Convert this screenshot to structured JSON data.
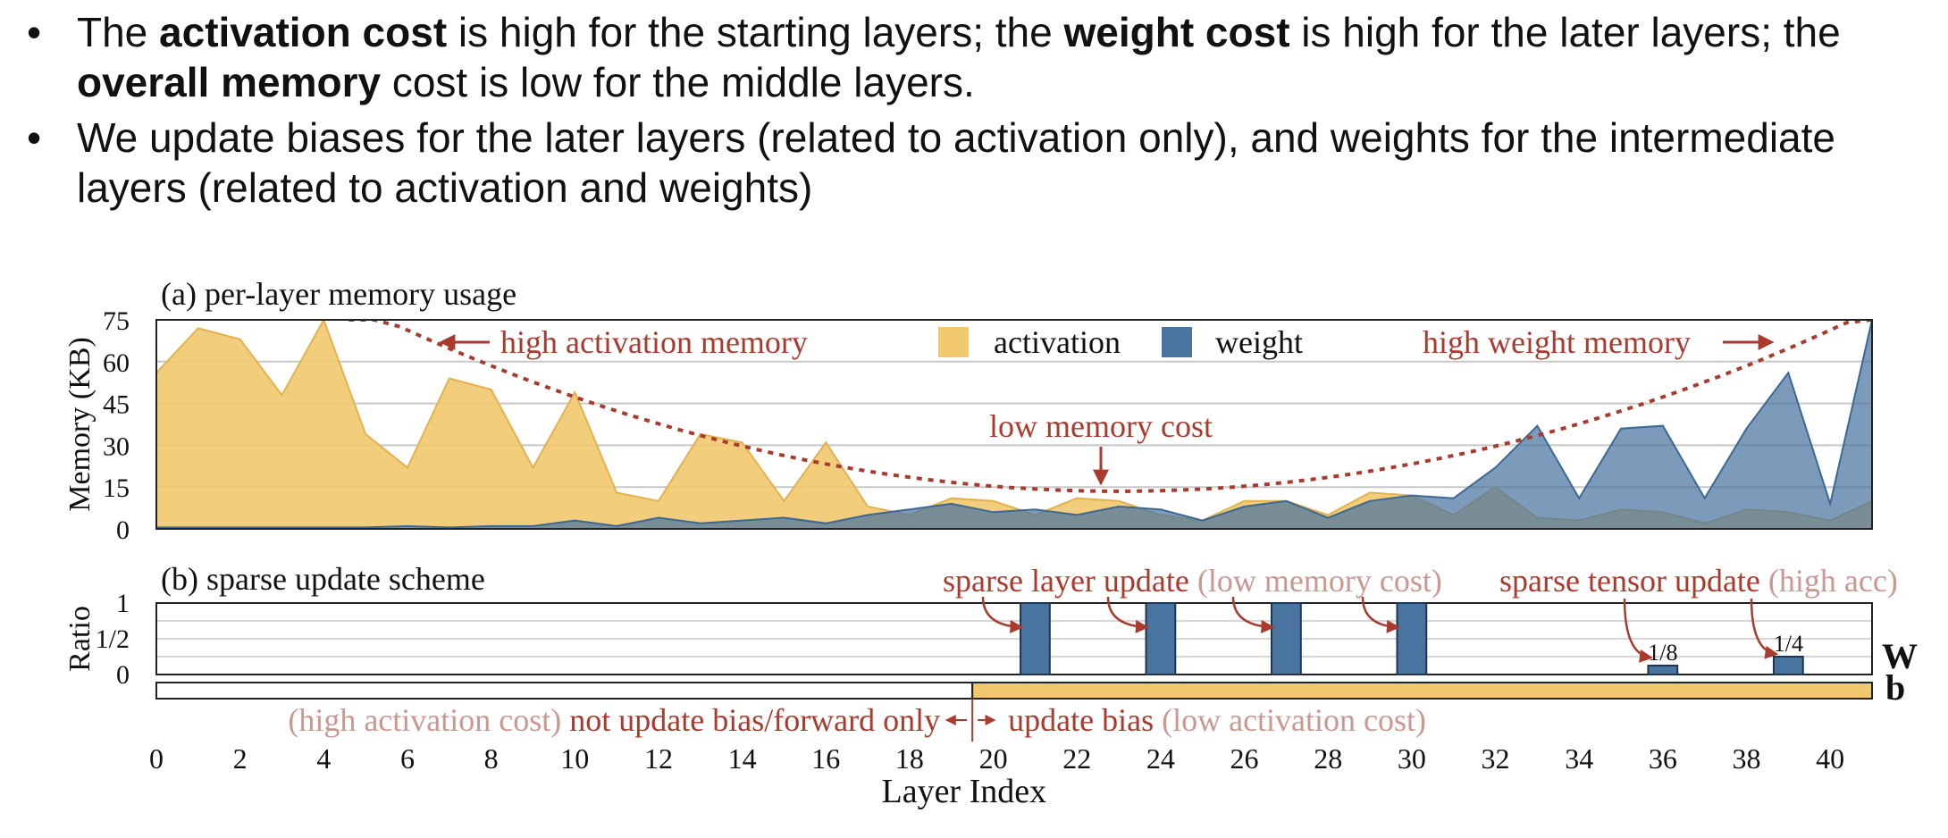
{
  "bullets": [
    {
      "parts": [
        {
          "t": "The ",
          "b": false
        },
        {
          "t": "activation cost",
          "b": true
        },
        {
          "t": " is high for the starting layers; the ",
          "b": false
        },
        {
          "t": "weight cost",
          "b": true
        },
        {
          "t": " is high for the later layers; the ",
          "b": false
        },
        {
          "t": "overall memory",
          "b": true
        },
        {
          "t": " cost is low for the middle layers.",
          "b": false
        }
      ]
    },
    {
      "parts": [
        {
          "t": "We update biases for the later layers (related to activation only), and weights for the intermediate layers (related to activation and weights)",
          "b": false
        }
      ]
    }
  ],
  "colors": {
    "activation": "#f0c86e",
    "activation_edge": "#e3b24f",
    "weight": "#3d6894",
    "weight_fill": "#4a74a0",
    "annotation": "#a83a2e",
    "annotation_light": "#c99890",
    "grid": "#c8c8c8",
    "text": "#111111"
  },
  "chart_data": [
    {
      "type": "area",
      "title": "(a) per-layer memory usage",
      "ylabel": "Memory (KB)",
      "xlabel": "Layer Index",
      "ylim": [
        0,
        75
      ],
      "xlim": [
        0,
        41
      ],
      "yticks": [
        0,
        15,
        30,
        45,
        60,
        75
      ],
      "xticks": [
        0,
        2,
        4,
        6,
        8,
        10,
        12,
        14,
        16,
        18,
        20,
        22,
        24,
        26,
        28,
        30,
        32,
        34,
        36,
        38,
        40
      ],
      "grid": true,
      "x": [
        0,
        1,
        2,
        3,
        4,
        5,
        6,
        7,
        8,
        9,
        10,
        11,
        12,
        13,
        14,
        15,
        16,
        17,
        18,
        19,
        20,
        21,
        22,
        23,
        24,
        25,
        26,
        27,
        28,
        29,
        30,
        31,
        32,
        33,
        34,
        35,
        36,
        37,
        38,
        39,
        40,
        41
      ],
      "series": [
        {
          "name": "activation",
          "values": [
            56,
            72,
            68,
            48,
            78,
            34,
            22,
            54,
            50,
            22,
            49,
            13,
            10,
            34,
            31,
            10,
            31,
            8,
            5,
            11,
            10,
            5,
            11,
            10,
            5,
            3,
            10,
            10,
            5,
            13,
            12,
            5,
            15,
            4,
            3,
            7,
            6,
            2,
            7,
            6,
            3,
            10
          ]
        },
        {
          "name": "weight",
          "values": [
            0.5,
            0.5,
            0.5,
            0.5,
            0.5,
            0.5,
            1,
            0.5,
            1,
            1,
            3,
            1,
            4,
            2,
            3,
            4,
            2,
            5,
            7,
            9,
            6,
            7,
            5,
            8,
            7,
            3,
            8,
            10,
            4,
            10,
            12,
            11,
            22,
            37,
            11,
            36,
            37,
            11,
            36,
            56,
            9,
            78
          ]
        }
      ],
      "legend": {
        "position": "top-center",
        "entries": [
          "activation",
          "weight"
        ]
      },
      "annotations": {
        "high_activation": "high activation memory",
        "high_weight": "high weight memory",
        "low_memory": "low memory cost"
      }
    },
    {
      "type": "bar",
      "title": "(b) sparse update scheme",
      "ylabel": "Ratio",
      "xlim": [
        0,
        41
      ],
      "yticks": [
        "0",
        "1/2",
        "1"
      ],
      "weight_bars": [
        {
          "x": 21,
          "value": 1
        },
        {
          "x": 24,
          "value": 1
        },
        {
          "x": 27,
          "value": 1
        },
        {
          "x": 30,
          "value": 1
        },
        {
          "x": 36,
          "value": 0.125,
          "label": "1/8"
        },
        {
          "x": 39,
          "value": 0.25,
          "label": "1/4"
        }
      ],
      "bias_update_start": 19.5,
      "row_labels": {
        "weight": "W",
        "bias": "b"
      },
      "annotations": {
        "sparse_layer": "sparse layer update",
        "sparse_layer_note": "(low memory cost)",
        "sparse_tensor": "sparse tensor update",
        "sparse_tensor_note": "(high acc)",
        "left_note": "(high activation cost)",
        "left_main": "not update bias/forward only",
        "right_main": "update bias",
        "right_note": "(low activation cost)"
      }
    }
  ]
}
